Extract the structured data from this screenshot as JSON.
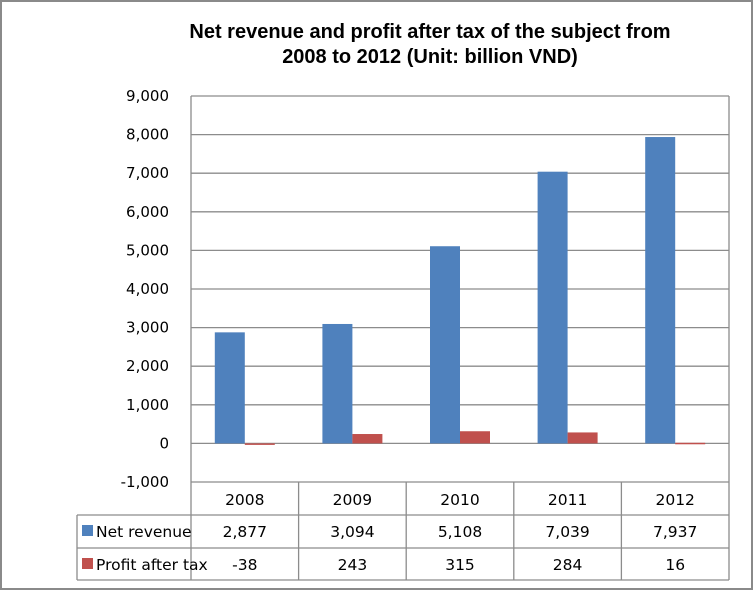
{
  "chart_data": {
    "type": "bar",
    "title": "Net revenue and profit after tax of the subject from 2008 to 2012 (Unit: billion VND)",
    "title_lines": [
      "Net revenue and profit after tax of the subject from",
      "2008 to 2012 (Unit: billion VND)"
    ],
    "categories": [
      "2008",
      "2009",
      "2010",
      "2011",
      "2012"
    ],
    "series": [
      {
        "name": "Net revenue",
        "color": "#4f81bd",
        "values": [
          2877,
          3094,
          5108,
          7039,
          7937
        ],
        "labels": [
          "2,877",
          "3,094",
          "5,108",
          "7,039",
          "7,937"
        ]
      },
      {
        "name": "Profit after tax",
        "color": "#c0504d",
        "values": [
          -38,
          243,
          315,
          284,
          16
        ],
        "labels": [
          "-38",
          "243",
          "315",
          "284",
          "16"
        ]
      }
    ],
    "ylim": [
      -1000,
      9000
    ],
    "yticks": [
      9000,
      8000,
      7000,
      6000,
      5000,
      4000,
      3000,
      2000,
      1000,
      0,
      -1000
    ],
    "ytick_labels": [
      "9,000",
      "8,000",
      "7,000",
      "6,000",
      "5,000",
      "4,000",
      "3,000",
      "2,000",
      "1,000",
      "0",
      "-1,000"
    ],
    "grid": true,
    "legend": "data-table",
    "xlabel": "",
    "ylabel": ""
  }
}
